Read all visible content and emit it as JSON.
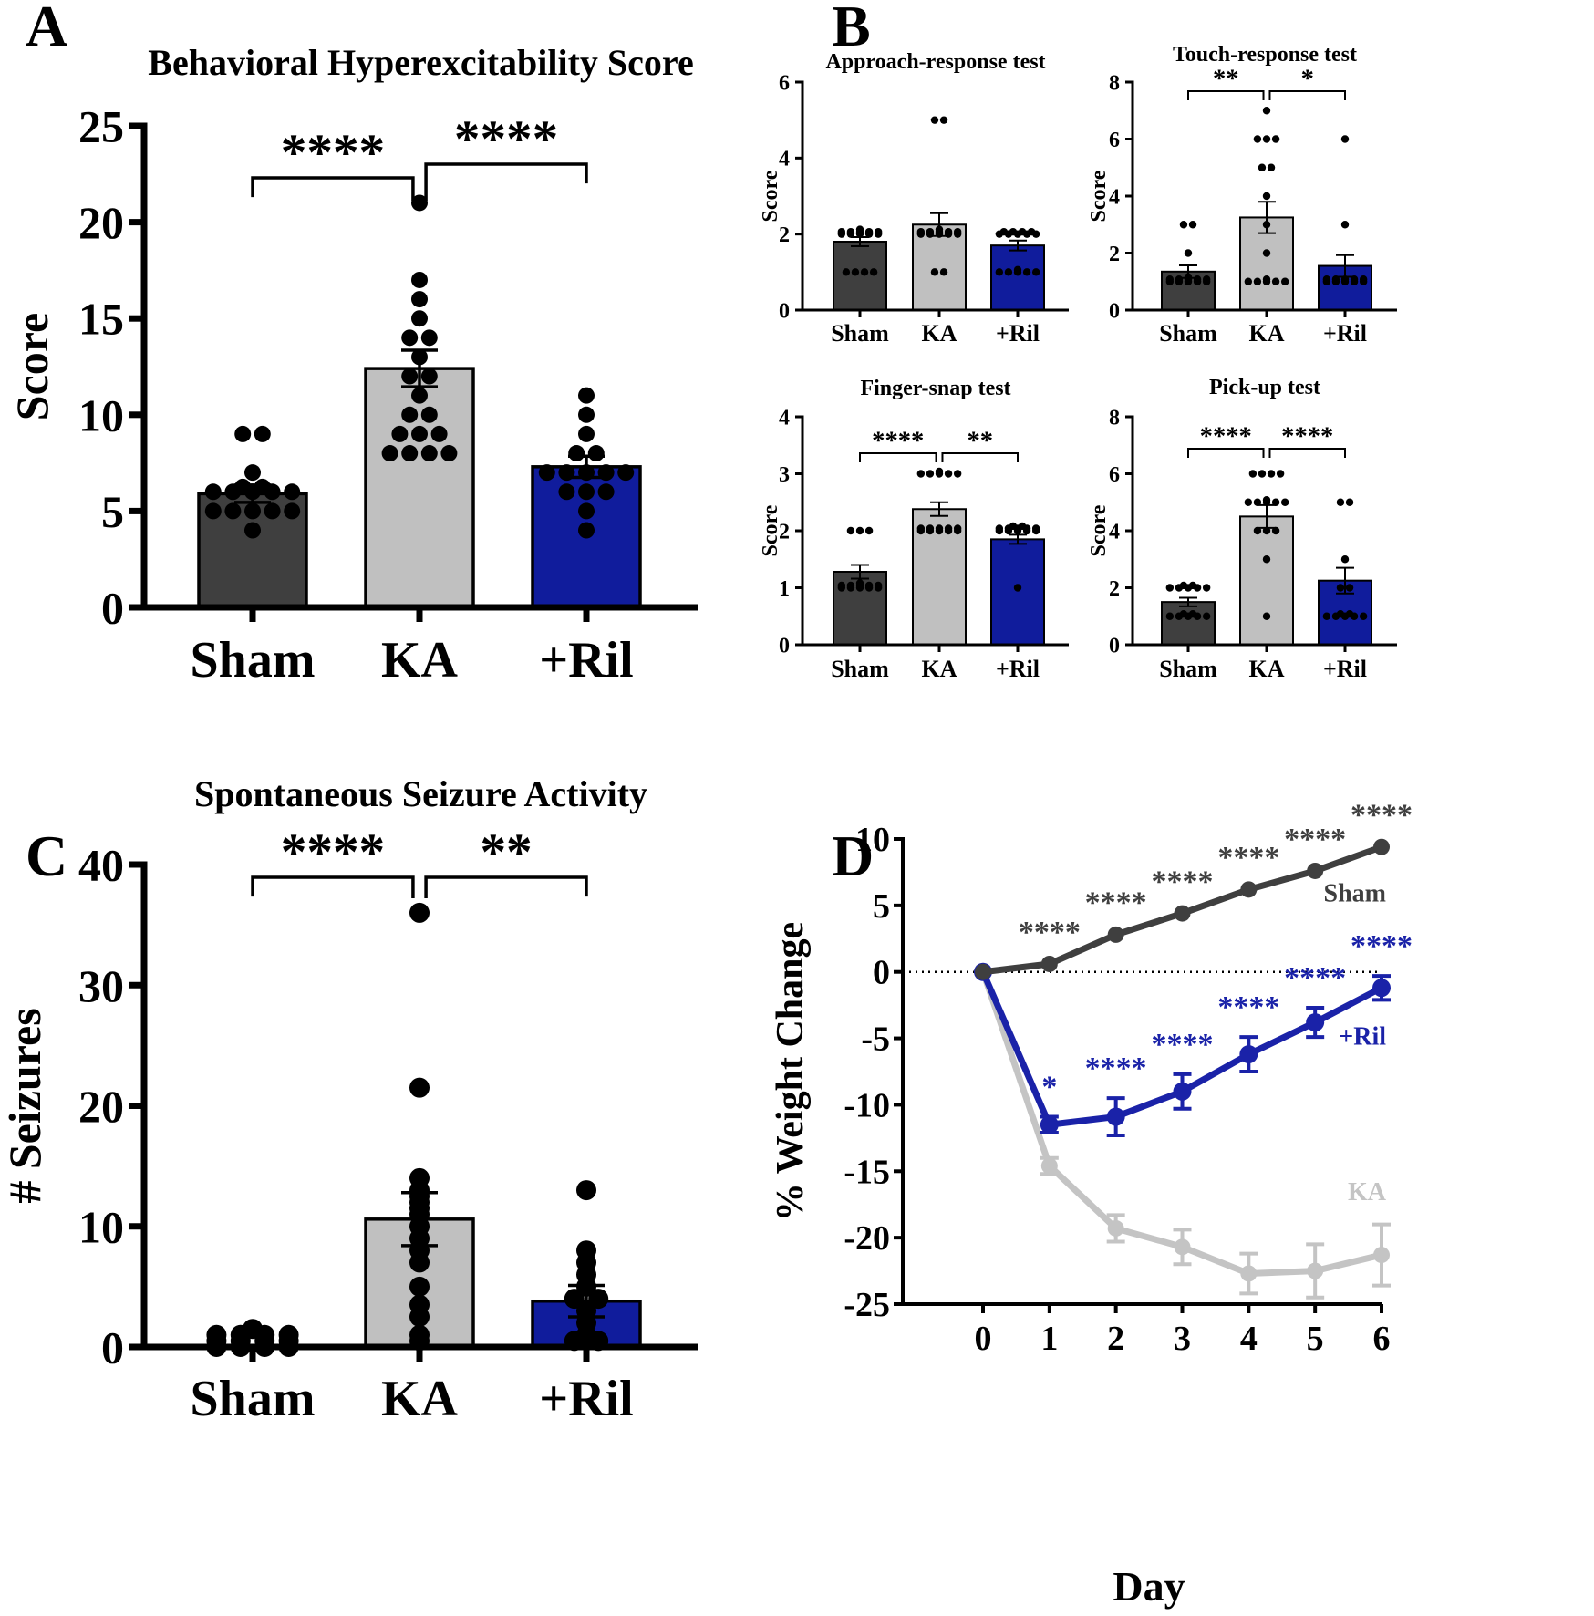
{
  "colors": {
    "sham": "#3f3f3f",
    "ka": "#c0c0c0",
    "ril": "#101c9c",
    "axis": "#000000",
    "ka_line": "#c4c4c4",
    "sham_line": "#3f3f3f",
    "ril_line": "#1a22a8"
  },
  "panels": {
    "a": "A",
    "b": "B",
    "c": "C",
    "d": "D"
  },
  "chart_data": [
    {
      "id": "A",
      "type": "bar",
      "title": "Behavioral Hyperexcitability Score",
      "xlabel": "",
      "ylabel": "Score",
      "categories": [
        "Sham",
        "KA",
        "+Ril"
      ],
      "values": [
        5.9,
        12.4,
        7.3
      ],
      "errors": [
        0.45,
        0.95,
        0.55
      ],
      "ylim": [
        0,
        25
      ],
      "yticks": [
        0,
        5,
        10,
        15,
        20,
        25
      ],
      "points": [
        [
          9,
          9,
          7,
          6,
          6,
          6,
          6,
          6,
          6,
          6,
          5,
          5,
          5,
          5,
          5,
          4
        ],
        [
          21,
          17,
          16,
          15,
          14,
          14,
          13,
          12,
          12,
          11,
          10,
          10,
          9,
          9,
          9,
          8,
          8,
          8,
          8
        ],
        [
          11,
          10,
          9,
          8,
          8,
          7,
          7,
          7,
          7,
          7,
          6,
          6,
          6,
          5,
          4
        ]
      ],
      "comparisons": [
        {
          "from": 0,
          "to": 1,
          "label": "****"
        },
        {
          "from": 1,
          "to": 2,
          "label": "****"
        }
      ]
    },
    {
      "id": "B1",
      "type": "bar",
      "title": "Approach-response test",
      "ylabel": "Score",
      "categories": [
        "Sham",
        "KA",
        "+Ril"
      ],
      "values": [
        1.8,
        2.25,
        1.7
      ],
      "errors": [
        0.12,
        0.3,
        0.13
      ],
      "ylim": [
        0,
        6
      ],
      "yticks": [
        0,
        2,
        4,
        6
      ],
      "points": [
        [
          2,
          2,
          2,
          2,
          2,
          2,
          2,
          2,
          2,
          2,
          2,
          1,
          1,
          1,
          1
        ],
        [
          5,
          5,
          2,
          2,
          2,
          2,
          2,
          2,
          2,
          2,
          2,
          2,
          2,
          1,
          1
        ],
        [
          2,
          2,
          2,
          2,
          2,
          2,
          2,
          2,
          2,
          1,
          1,
          1,
          1,
          1,
          1
        ]
      ],
      "comparisons": []
    },
    {
      "id": "B2",
      "type": "bar",
      "title": "Touch-response test",
      "ylabel": "Score",
      "categories": [
        "Sham",
        "KA",
        "+Ril"
      ],
      "values": [
        1.35,
        3.25,
        1.55
      ],
      "errors": [
        0.22,
        0.55,
        0.38
      ],
      "ylim": [
        0,
        8
      ],
      "yticks": [
        0,
        2,
        4,
        6,
        8
      ],
      "points": [
        [
          3,
          3,
          2,
          1,
          1,
          1,
          1,
          1,
          1,
          1,
          1,
          1,
          1,
          1
        ],
        [
          7,
          6,
          6,
          6,
          5,
          5,
          4,
          3,
          2,
          1,
          1,
          1,
          1,
          1,
          1
        ],
        [
          6,
          3,
          1,
          1,
          1,
          1,
          1,
          1,
          1,
          1,
          1,
          1
        ]
      ],
      "comparisons": [
        {
          "from": 0,
          "to": 1,
          "label": "**"
        },
        {
          "from": 1,
          "to": 2,
          "label": "*"
        }
      ]
    },
    {
      "id": "B3",
      "type": "bar",
      "title": "Finger-snap test",
      "ylabel": "Score",
      "categories": [
        "Sham",
        "KA",
        "+Ril"
      ],
      "values": [
        1.28,
        2.38,
        1.85
      ],
      "errors": [
        0.12,
        0.12,
        0.08
      ],
      "ylim": [
        0,
        4
      ],
      "yticks": [
        0,
        1,
        2,
        3,
        4
      ],
      "points": [
        [
          2,
          2,
          2,
          1,
          1,
          1,
          1,
          1,
          1,
          1,
          1,
          1,
          1,
          1
        ],
        [
          3,
          3,
          3,
          3,
          3,
          3,
          2,
          2,
          2,
          2,
          2,
          2,
          2,
          2,
          2,
          2
        ],
        [
          2,
          2,
          2,
          2,
          2,
          2,
          2,
          2,
          2,
          2,
          2,
          2,
          1
        ]
      ],
      "comparisons": [
        {
          "from": 0,
          "to": 1,
          "label": "****"
        },
        {
          "from": 1,
          "to": 2,
          "label": "**"
        }
      ]
    },
    {
      "id": "B4",
      "type": "bar",
      "title": "Pick-up test",
      "ylabel": "Score",
      "categories": [
        "Sham",
        "KA",
        "+Ril"
      ],
      "values": [
        1.5,
        4.5,
        2.25
      ],
      "errors": [
        0.15,
        0.4,
        0.45
      ],
      "ylim": [
        0,
        8
      ],
      "yticks": [
        0,
        2,
        4,
        6,
        8
      ],
      "points": [
        [
          2,
          2,
          2,
          2,
          2,
          2,
          2,
          1,
          1,
          1,
          1,
          1,
          1,
          1
        ],
        [
          6,
          6,
          6,
          6,
          5,
          5,
          5,
          5,
          5,
          5,
          4,
          4,
          4,
          3,
          1
        ],
        [
          5,
          5,
          3,
          2,
          2,
          1,
          1,
          1,
          1,
          1,
          1,
          1
        ]
      ],
      "comparisons": [
        {
          "from": 0,
          "to": 1,
          "label": "****"
        },
        {
          "from": 1,
          "to": 2,
          "label": "****"
        }
      ]
    },
    {
      "id": "C",
      "type": "bar",
      "title": "Spontaneous Seizure Activity",
      "ylabel": "# Seizures",
      "categories": [
        "Sham",
        "KA",
        "+Ril"
      ],
      "values": [
        0,
        10.6,
        3.8
      ],
      "errors": [
        0,
        2.2,
        1.3
      ],
      "ylim": [
        0,
        40
      ],
      "yticks": [
        0,
        10,
        20,
        30,
        40
      ],
      "points": [
        [
          0,
          0,
          0,
          0,
          0,
          0,
          0,
          0,
          0,
          0,
          0,
          0,
          0
        ],
        [
          36,
          21.5,
          14,
          13,
          12.5,
          12,
          11.5,
          11,
          10,
          9,
          8,
          7,
          5,
          3.5,
          2.5,
          1,
          0.5
        ],
        [
          13,
          8,
          7,
          6,
          5,
          4,
          4,
          3,
          2,
          1,
          0.5,
          0.5
        ]
      ],
      "comparisons": [
        {
          "from": 0,
          "to": 1,
          "label": "****"
        },
        {
          "from": 1,
          "to": 2,
          "label": "**"
        }
      ]
    },
    {
      "id": "D",
      "type": "line",
      "title": "",
      "xlabel": "Day",
      "ylabel": "% Weight Change",
      "x": [
        0,
        1,
        2,
        3,
        4,
        5,
        6
      ],
      "xlim": [
        -1,
        6
      ],
      "ylim": [
        -25,
        10
      ],
      "yticks": [
        -25,
        -20,
        -15,
        -10,
        -5,
        0,
        5,
        10
      ],
      "series": [
        {
          "name": "Sham",
          "values": [
            0,
            0.6,
            2.8,
            4.4,
            6.2,
            7.6,
            9.4
          ],
          "errors": [
            0,
            0.15,
            0.15,
            0.15,
            0.15,
            0.15,
            0.15
          ],
          "label_y": 6
        },
        {
          "name": "KA",
          "values": [
            0,
            -14.6,
            -19.3,
            -20.7,
            -22.7,
            -22.5,
            -21.3
          ],
          "errors": [
            0,
            0.6,
            1,
            1.3,
            1.5,
            2,
            2.3
          ],
          "label_y": -16.5
        },
        {
          "name": "+Ril",
          "values": [
            0,
            -11.5,
            -10.9,
            -9,
            -6.2,
            -3.8,
            -1.2
          ],
          "errors": [
            0,
            0.6,
            1.4,
            1.3,
            1.3,
            1.1,
            0.9
          ],
          "label_y": -4.8
        }
      ],
      "annotations": [
        {
          "series": "Sham",
          "points": [
            1,
            2,
            3,
            4,
            5,
            6
          ],
          "label": "****"
        },
        {
          "series": "+Ril",
          "points": [
            1
          ],
          "label": "*"
        },
        {
          "series": "+Ril",
          "points": [
            2,
            3,
            4,
            5,
            6
          ],
          "label": "****"
        }
      ]
    }
  ]
}
